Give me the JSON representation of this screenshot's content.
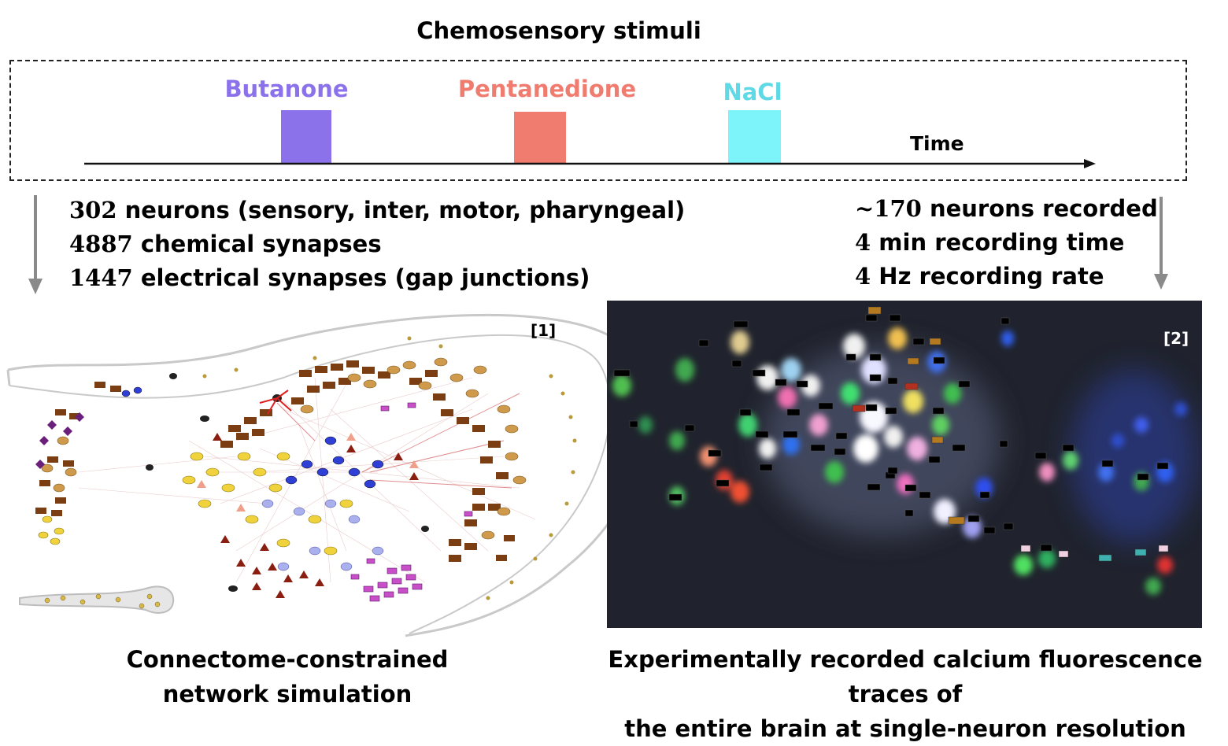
{
  "title": "Chemosensory stimuli",
  "stimuli": [
    {
      "label": "Butanone",
      "color": "#8b72ea"
    },
    {
      "label": "Pentanedione",
      "color": "#f07b6f"
    },
    {
      "label": "NaCl",
      "color": "#7df3fa"
    }
  ],
  "time_label": "Time",
  "connectome_stats": [
    {
      "num": "302",
      "text": "neurons (sensory, inter, motor, pharyngeal)"
    },
    {
      "num": "4887",
      "text": "chemical synapses"
    },
    {
      "num": "1447",
      "text": "electrical synapses (gap junctions)"
    }
  ],
  "recording_stats": [
    {
      "num": "~170",
      "text": "neurons recorded"
    },
    {
      "num": "4",
      "text": "min recording time"
    },
    {
      "num": "4",
      "text": "Hz recording rate"
    }
  ],
  "ref_left": "[1]",
  "ref_right": "[2]",
  "caption_left": [
    "Connectome-constrained",
    "network simulation"
  ],
  "caption_right": [
    "Experimentally recorded calcium fluorescence traces of",
    "the entire brain at single-neuron resolution"
  ],
  "colors": {
    "arrow_gray": "#8a8a8a",
    "panel_bg": "#20232d"
  }
}
